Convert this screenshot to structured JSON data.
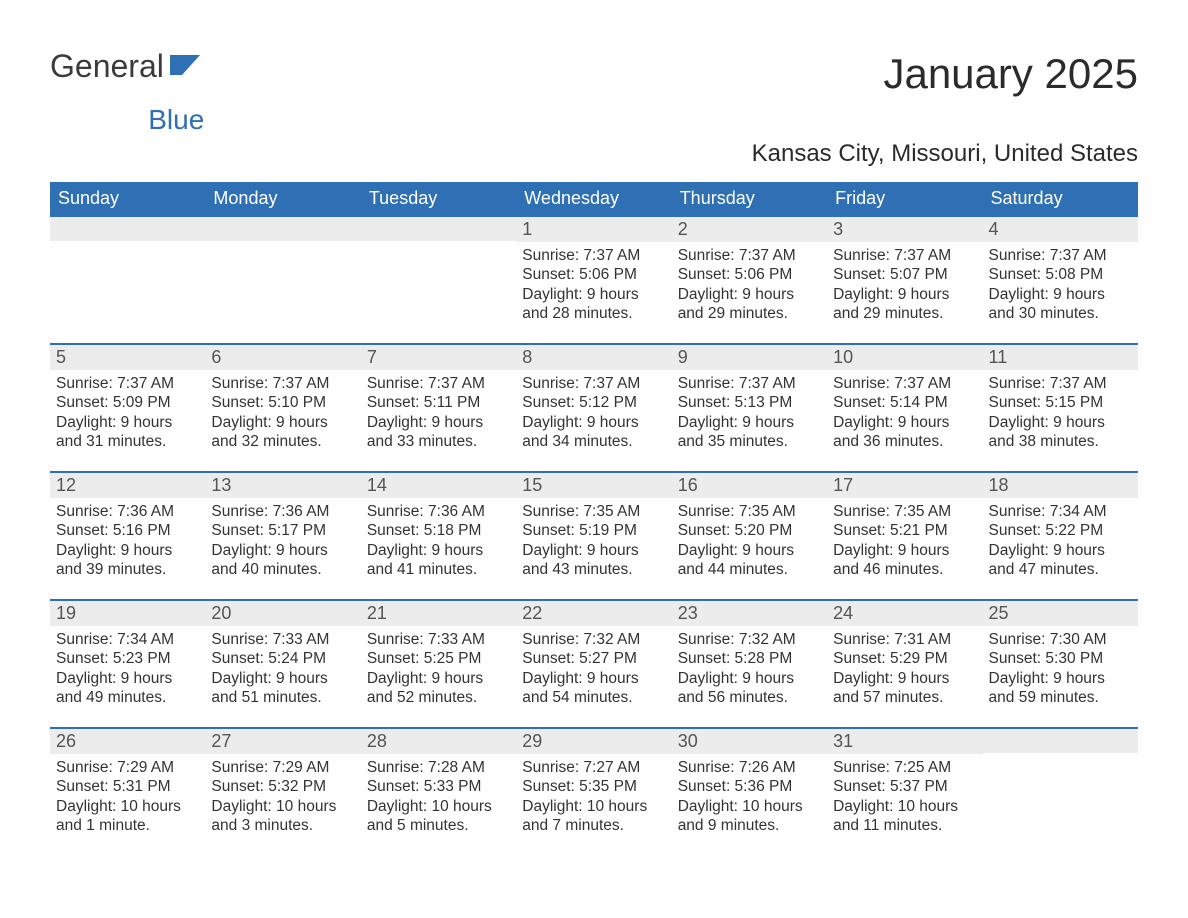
{
  "logo": {
    "word1": "General",
    "word2": "Blue"
  },
  "title": "January 2025",
  "subtitle": "Kansas City, Missouri, United States",
  "colors": {
    "header_bg": "#2f6fb3",
    "header_text": "#ffffff",
    "daybar_bg": "#ececec",
    "daybar_border": "#2f6fb3",
    "body_text": "#333333",
    "page_bg": "#ffffff"
  },
  "typography": {
    "title_fontsize": 42,
    "subtitle_fontsize": 24,
    "header_fontsize": 18,
    "daynum_fontsize": 18,
    "body_fontsize": 15.5,
    "font_family": "Arial"
  },
  "weekday_headers": [
    "Sunday",
    "Monday",
    "Tuesday",
    "Wednesday",
    "Thursday",
    "Friday",
    "Saturday"
  ],
  "weeks": [
    [
      null,
      null,
      null,
      {
        "n": "1",
        "sunrise": "Sunrise: 7:37 AM",
        "sunset": "Sunset: 5:06 PM",
        "dl1": "Daylight: 9 hours",
        "dl2": "and 28 minutes."
      },
      {
        "n": "2",
        "sunrise": "Sunrise: 7:37 AM",
        "sunset": "Sunset: 5:06 PM",
        "dl1": "Daylight: 9 hours",
        "dl2": "and 29 minutes."
      },
      {
        "n": "3",
        "sunrise": "Sunrise: 7:37 AM",
        "sunset": "Sunset: 5:07 PM",
        "dl1": "Daylight: 9 hours",
        "dl2": "and 29 minutes."
      },
      {
        "n": "4",
        "sunrise": "Sunrise: 7:37 AM",
        "sunset": "Sunset: 5:08 PM",
        "dl1": "Daylight: 9 hours",
        "dl2": "and 30 minutes."
      }
    ],
    [
      {
        "n": "5",
        "sunrise": "Sunrise: 7:37 AM",
        "sunset": "Sunset: 5:09 PM",
        "dl1": "Daylight: 9 hours",
        "dl2": "and 31 minutes."
      },
      {
        "n": "6",
        "sunrise": "Sunrise: 7:37 AM",
        "sunset": "Sunset: 5:10 PM",
        "dl1": "Daylight: 9 hours",
        "dl2": "and 32 minutes."
      },
      {
        "n": "7",
        "sunrise": "Sunrise: 7:37 AM",
        "sunset": "Sunset: 5:11 PM",
        "dl1": "Daylight: 9 hours",
        "dl2": "and 33 minutes."
      },
      {
        "n": "8",
        "sunrise": "Sunrise: 7:37 AM",
        "sunset": "Sunset: 5:12 PM",
        "dl1": "Daylight: 9 hours",
        "dl2": "and 34 minutes."
      },
      {
        "n": "9",
        "sunrise": "Sunrise: 7:37 AM",
        "sunset": "Sunset: 5:13 PM",
        "dl1": "Daylight: 9 hours",
        "dl2": "and 35 minutes."
      },
      {
        "n": "10",
        "sunrise": "Sunrise: 7:37 AM",
        "sunset": "Sunset: 5:14 PM",
        "dl1": "Daylight: 9 hours",
        "dl2": "and 36 minutes."
      },
      {
        "n": "11",
        "sunrise": "Sunrise: 7:37 AM",
        "sunset": "Sunset: 5:15 PM",
        "dl1": "Daylight: 9 hours",
        "dl2": "and 38 minutes."
      }
    ],
    [
      {
        "n": "12",
        "sunrise": "Sunrise: 7:36 AM",
        "sunset": "Sunset: 5:16 PM",
        "dl1": "Daylight: 9 hours",
        "dl2": "and 39 minutes."
      },
      {
        "n": "13",
        "sunrise": "Sunrise: 7:36 AM",
        "sunset": "Sunset: 5:17 PM",
        "dl1": "Daylight: 9 hours",
        "dl2": "and 40 minutes."
      },
      {
        "n": "14",
        "sunrise": "Sunrise: 7:36 AM",
        "sunset": "Sunset: 5:18 PM",
        "dl1": "Daylight: 9 hours",
        "dl2": "and 41 minutes."
      },
      {
        "n": "15",
        "sunrise": "Sunrise: 7:35 AM",
        "sunset": "Sunset: 5:19 PM",
        "dl1": "Daylight: 9 hours",
        "dl2": "and 43 minutes."
      },
      {
        "n": "16",
        "sunrise": "Sunrise: 7:35 AM",
        "sunset": "Sunset: 5:20 PM",
        "dl1": "Daylight: 9 hours",
        "dl2": "and 44 minutes."
      },
      {
        "n": "17",
        "sunrise": "Sunrise: 7:35 AM",
        "sunset": "Sunset: 5:21 PM",
        "dl1": "Daylight: 9 hours",
        "dl2": "and 46 minutes."
      },
      {
        "n": "18",
        "sunrise": "Sunrise: 7:34 AM",
        "sunset": "Sunset: 5:22 PM",
        "dl1": "Daylight: 9 hours",
        "dl2": "and 47 minutes."
      }
    ],
    [
      {
        "n": "19",
        "sunrise": "Sunrise: 7:34 AM",
        "sunset": "Sunset: 5:23 PM",
        "dl1": "Daylight: 9 hours",
        "dl2": "and 49 minutes."
      },
      {
        "n": "20",
        "sunrise": "Sunrise: 7:33 AM",
        "sunset": "Sunset: 5:24 PM",
        "dl1": "Daylight: 9 hours",
        "dl2": "and 51 minutes."
      },
      {
        "n": "21",
        "sunrise": "Sunrise: 7:33 AM",
        "sunset": "Sunset: 5:25 PM",
        "dl1": "Daylight: 9 hours",
        "dl2": "and 52 minutes."
      },
      {
        "n": "22",
        "sunrise": "Sunrise: 7:32 AM",
        "sunset": "Sunset: 5:27 PM",
        "dl1": "Daylight: 9 hours",
        "dl2": "and 54 minutes."
      },
      {
        "n": "23",
        "sunrise": "Sunrise: 7:32 AM",
        "sunset": "Sunset: 5:28 PM",
        "dl1": "Daylight: 9 hours",
        "dl2": "and 56 minutes."
      },
      {
        "n": "24",
        "sunrise": "Sunrise: 7:31 AM",
        "sunset": "Sunset: 5:29 PM",
        "dl1": "Daylight: 9 hours",
        "dl2": "and 57 minutes."
      },
      {
        "n": "25",
        "sunrise": "Sunrise: 7:30 AM",
        "sunset": "Sunset: 5:30 PM",
        "dl1": "Daylight: 9 hours",
        "dl2": "and 59 minutes."
      }
    ],
    [
      {
        "n": "26",
        "sunrise": "Sunrise: 7:29 AM",
        "sunset": "Sunset: 5:31 PM",
        "dl1": "Daylight: 10 hours",
        "dl2": "and 1 minute."
      },
      {
        "n": "27",
        "sunrise": "Sunrise: 7:29 AM",
        "sunset": "Sunset: 5:32 PM",
        "dl1": "Daylight: 10 hours",
        "dl2": "and 3 minutes."
      },
      {
        "n": "28",
        "sunrise": "Sunrise: 7:28 AM",
        "sunset": "Sunset: 5:33 PM",
        "dl1": "Daylight: 10 hours",
        "dl2": "and 5 minutes."
      },
      {
        "n": "29",
        "sunrise": "Sunrise: 7:27 AM",
        "sunset": "Sunset: 5:35 PM",
        "dl1": "Daylight: 10 hours",
        "dl2": "and 7 minutes."
      },
      {
        "n": "30",
        "sunrise": "Sunrise: 7:26 AM",
        "sunset": "Sunset: 5:36 PM",
        "dl1": "Daylight: 10 hours",
        "dl2": "and 9 minutes."
      },
      {
        "n": "31",
        "sunrise": "Sunrise: 7:25 AM",
        "sunset": "Sunset: 5:37 PM",
        "dl1": "Daylight: 10 hours",
        "dl2": "and 11 minutes."
      },
      null
    ]
  ]
}
